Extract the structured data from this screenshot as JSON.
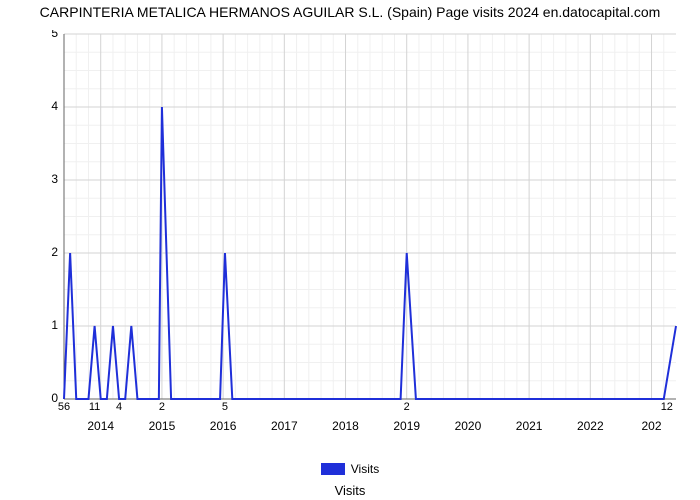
{
  "chart": {
    "type": "line",
    "title": "CARPINTERIA METALICA HERMANOS AGUILAR S.L. (Spain) Page visits 2024 en.datocapital.com",
    "title_fontsize": 14,
    "xlabel": "Visits",
    "background_color": "#ffffff",
    "series_color": "#1f2fd9",
    "axis_color": "#666666",
    "grid_major_color": "#d3d3d3",
    "grid_minor_color": "#f0f0f0",
    "line_width": 2,
    "ylim": [
      0,
      5
    ],
    "ytick_step": 1,
    "yminor_per_major": 4,
    "xticks": [
      {
        "pos": 0.06,
        "label": "2014"
      },
      {
        "pos": 0.16,
        "label": "2015"
      },
      {
        "pos": 0.26,
        "label": "2016"
      },
      {
        "pos": 0.36,
        "label": "2017"
      },
      {
        "pos": 0.46,
        "label": "2018"
      },
      {
        "pos": 0.56,
        "label": "2019"
      },
      {
        "pos": 0.66,
        "label": "2020"
      },
      {
        "pos": 0.76,
        "label": "2021"
      },
      {
        "pos": 0.86,
        "label": "2022"
      },
      {
        "pos": 0.96,
        "label": "202"
      }
    ],
    "xminors": [
      0.02,
      0.04,
      0.08,
      0.1,
      0.12,
      0.14,
      0.18,
      0.2,
      0.22,
      0.24,
      0.28,
      0.3,
      0.32,
      0.34,
      0.38,
      0.4,
      0.42,
      0.44,
      0.48,
      0.5,
      0.52,
      0.54,
      0.58,
      0.6,
      0.62,
      0.64,
      0.68,
      0.7,
      0.72,
      0.74,
      0.78,
      0.8,
      0.82,
      0.84,
      0.88,
      0.9,
      0.92,
      0.94,
      0.98
    ],
    "points": [
      [
        0.0,
        0
      ],
      [
        0.01,
        2
      ],
      [
        0.02,
        0
      ],
      [
        0.04,
        0
      ],
      [
        0.05,
        1
      ],
      [
        0.06,
        0
      ],
      [
        0.07,
        0
      ],
      [
        0.08,
        1
      ],
      [
        0.09,
        0
      ],
      [
        0.1,
        0
      ],
      [
        0.11,
        1
      ],
      [
        0.12,
        0
      ],
      [
        0.13,
        0
      ],
      [
        0.155,
        0
      ],
      [
        0.16,
        4
      ],
      [
        0.175,
        0
      ],
      [
        0.255,
        0
      ],
      [
        0.263,
        2
      ],
      [
        0.275,
        0
      ],
      [
        0.55,
        0
      ],
      [
        0.56,
        2
      ],
      [
        0.575,
        0
      ],
      [
        0.58,
        0
      ],
      [
        0.98,
        0
      ],
      [
        1.0,
        1
      ]
    ],
    "data_labels": [
      {
        "pos": 0.0,
        "text": "56"
      },
      {
        "pos": 0.05,
        "text": "11"
      },
      {
        "pos": 0.09,
        "text": "4"
      },
      {
        "pos": 0.16,
        "text": "2"
      },
      {
        "pos": 0.263,
        "text": "5"
      },
      {
        "pos": 0.56,
        "text": "2"
      },
      {
        "pos": 0.985,
        "text": "12"
      }
    ],
    "legend": {
      "label": "Visits",
      "swatch_color": "#1f2fd9"
    }
  }
}
